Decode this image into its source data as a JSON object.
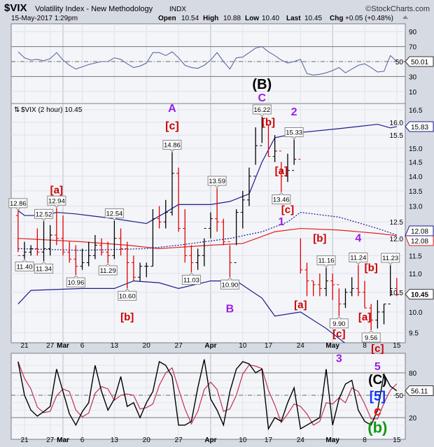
{
  "header": {
    "symbol": "$VIX",
    "name": "Volatility Index - New Methodology",
    "exchange": "INDX",
    "watermark": "©StockCharts.com",
    "datetime": "15-May-2017 1:29pm",
    "open_label": "Open",
    "open": "10.54",
    "high_label": "High",
    "high": "10.88",
    "low_label": "Low",
    "low": "10.40",
    "last_label": "Last",
    "last": "10.45",
    "chg_label": "Chg",
    "chg": "+0.05 (+0.48%)"
  },
  "colors": {
    "up_bar": "#000000",
    "down_bar": "#dd0000",
    "bands": "#1a1a8c",
    "sma": "#e02020",
    "panel_bg": "#f4f5f9",
    "purple": "#9a1ee6",
    "red_label": "#cc0000",
    "blue_label": "#1030ff",
    "green_label": "#119911"
  },
  "chart_data": [
    {
      "type": "line",
      "panel": "RSI (upper indicator)",
      "yticks": [
        10,
        30,
        50,
        70,
        90
      ],
      "ylim": [
        -5,
        100
      ],
      "reference_lines": [
        30,
        50,
        70
      ],
      "last_value": "50.01",
      "values": [
        63,
        55,
        52,
        53,
        51,
        54,
        62,
        52,
        45,
        40,
        43,
        46,
        48,
        50,
        50,
        55,
        53,
        47,
        42,
        44,
        48,
        62,
        62,
        58,
        63,
        55,
        45,
        42,
        41,
        45,
        52,
        62,
        50,
        40,
        55,
        56,
        62,
        68,
        70,
        63,
        58,
        52,
        48,
        50,
        53,
        34,
        32,
        33,
        35,
        38,
        42,
        35,
        40,
        45,
        47,
        42,
        36,
        37,
        58,
        50
      ]
    },
    {
      "type": "ohlc",
      "panel": "price",
      "title": "$VIX (2 hour) 10.45",
      "dates": [
        "Feb 17",
        "Feb 21",
        "Feb 22",
        "Feb 23",
        "Feb 24",
        "Feb 27",
        "Feb 28",
        "Mar 1",
        "Mar 2",
        "Mar 3",
        "Mar 6",
        "Mar 7",
        "Mar 8",
        "Mar 9",
        "Mar 10",
        "Mar 13",
        "Mar 14",
        "Mar 15",
        "Mar 16",
        "Mar 17",
        "Mar 20",
        "Mar 21",
        "Mar 22",
        "Mar 23",
        "Mar 24",
        "Mar 27",
        "Mar 28",
        "Mar 29",
        "Mar 30",
        "Mar 31",
        "Apr 3",
        "Apr 4",
        "Apr 5",
        "Apr 6",
        "Apr 7",
        "Apr 10",
        "Apr 11",
        "Apr 12",
        "Apr 13",
        "Apr 17",
        "Apr 18",
        "Apr 19",
        "Apr 20",
        "Apr 21",
        "Apr 24",
        "Apr 25",
        "Apr 26",
        "Apr 27",
        "Apr 28",
        "May 1",
        "May 2",
        "May 3",
        "May 4",
        "May 5",
        "May 8",
        "May 9",
        "May 10",
        "May 11",
        "May 12",
        "May 15"
      ],
      "high": [
        12.86,
        11.9,
        11.8,
        12.3,
        12.52,
        12.4,
        12.94,
        12.7,
        11.9,
        11.8,
        11.7,
        11.9,
        12.1,
        12.0,
        11.9,
        12.54,
        12.3,
        11.9,
        11.5,
        11.3,
        11.3,
        12.9,
        13.0,
        13.2,
        14.86,
        14.3,
        12.9,
        11.8,
        11.7,
        12.0,
        12.8,
        13.59,
        12.6,
        11.8,
        12.9,
        13.5,
        14.3,
        15.8,
        16.22,
        15.9,
        15.5,
        14.5,
        14.8,
        15.33,
        12.0,
        11.3,
        10.8,
        11.0,
        11.16,
        11.0,
        10.6,
        10.6,
        10.9,
        11.24,
        10.8,
        10.2,
        10.3,
        10.2,
        11.23,
        10.88
      ],
      "low": [
        11.6,
        11.4,
        11.5,
        11.5,
        11.34,
        11.5,
        11.8,
        11.5,
        11.3,
        10.96,
        11.1,
        11.2,
        11.4,
        11.5,
        11.29,
        11.4,
        11.5,
        10.6,
        10.8,
        10.8,
        10.9,
        11.2,
        12.3,
        12.3,
        12.7,
        12.2,
        11.3,
        11.03,
        11.1,
        11.2,
        12.0,
        12.2,
        11.8,
        10.9,
        11.8,
        12.3,
        13.0,
        14.4,
        15.2,
        14.7,
        14.5,
        13.46,
        13.8,
        14.4,
        11.0,
        10.4,
        10.4,
        10.4,
        10.4,
        10.3,
        9.9,
        10.1,
        10.4,
        10.4,
        10.1,
        9.56,
        9.6,
        9.7,
        10.4,
        10.4
      ],
      "close": [
        11.5,
        11.6,
        11.7,
        11.6,
        11.7,
        12.1,
        12.0,
        11.6,
        11.4,
        11.2,
        11.3,
        11.5,
        11.8,
        11.6,
        11.5,
        12.0,
        11.7,
        11.3,
        10.9,
        11.2,
        11.2,
        12.6,
        12.5,
        12.8,
        14.1,
        12.3,
        11.5,
        11.3,
        11.5,
        12.3,
        12.6,
        12.5,
        11.9,
        11.3,
        12.8,
        13.2,
        14.0,
        15.1,
        15.9,
        14.7,
        14.9,
        14.0,
        14.2,
        14.6,
        11.1,
        10.8,
        10.7,
        10.6,
        10.8,
        10.7,
        10.2,
        10.5,
        10.6,
        10.5,
        10.1,
        9.8,
        10.0,
        10.2,
        10.6,
        10.45
      ],
      "x_tick_labels": [
        {
          "i": 1,
          "t": "21"
        },
        {
          "i": 5,
          "t": "27"
        },
        {
          "i": 7,
          "t": "Mar",
          "bold": true
        },
        {
          "i": 10,
          "t": "6"
        },
        {
          "i": 15,
          "t": "13"
        },
        {
          "i": 20,
          "t": "20"
        },
        {
          "i": 25,
          "t": "27"
        },
        {
          "i": 30,
          "t": "Apr",
          "bold": true
        },
        {
          "i": 35,
          "t": "10"
        },
        {
          "i": 39,
          "t": "17"
        },
        {
          "i": 44,
          "t": "24"
        },
        {
          "i": 49,
          "t": "May",
          "bold": true
        },
        {
          "i": 54,
          "t": "8"
        },
        {
          "i": 59,
          "t": "15"
        }
      ],
      "yticks": [
        "9.5",
        "10.0",
        "10.5",
        "11.0",
        "11.5",
        "12.0",
        "12.5",
        "13.0",
        "13.5",
        "14.0",
        "14.5",
        "15.0",
        "15.5",
        "16.0",
        "16.5"
      ],
      "ylim": [
        9.0,
        16.7
      ],
      "overlays": {
        "upper_band": {
          "last": "15.83",
          "points": [
            [
              0,
              12.86
            ],
            [
              1,
              12.7
            ],
            [
              4,
              12.7
            ],
            [
              6,
              12.8
            ],
            [
              9,
              12.75
            ],
            [
              15,
              12.6
            ],
            [
              20,
              12.45
            ],
            [
              23,
              12.8
            ],
            [
              25,
              13.05
            ],
            [
              30,
              13.05
            ],
            [
              33,
              13.15
            ],
            [
              36,
              13.4
            ],
            [
              38,
              14.5
            ],
            [
              40,
              15.4
            ],
            [
              44,
              15.6
            ],
            [
              50,
              15.75
            ],
            [
              56,
              15.92
            ],
            [
              58,
              15.78
            ],
            [
              59,
              15.83
            ]
          ]
        },
        "sma": {
          "last": "12.08",
          "points": [
            [
              0,
              12.0
            ],
            [
              10,
              11.9
            ],
            [
              17,
              11.8
            ],
            [
              22,
              11.7
            ],
            [
              30,
              11.8
            ],
            [
              35,
              11.85
            ],
            [
              40,
              12.2
            ],
            [
              44,
              12.3
            ],
            [
              50,
              12.25
            ],
            [
              56,
              12.15
            ],
            [
              59,
              12.08
            ]
          ]
        },
        "ema_dotted": {
          "last": "12.08",
          "points": [
            [
              0,
              11.7
            ],
            [
              10,
              11.65
            ],
            [
              20,
              11.7
            ],
            [
              25,
              11.8
            ],
            [
              33,
              12.0
            ],
            [
              38,
              12.2
            ],
            [
              42,
              12.5
            ],
            [
              44,
              12.8
            ],
            [
              50,
              12.65
            ],
            [
              56,
              12.3
            ],
            [
              59,
              12.1
            ]
          ]
        },
        "lower_band": {
          "points": [
            [
              0,
              10.2
            ],
            [
              2,
              10.55
            ],
            [
              10,
              10.6
            ],
            [
              15,
              10.6
            ],
            [
              18,
              10.8
            ],
            [
              22,
              10.75
            ],
            [
              25,
              10.6
            ],
            [
              30,
              10.8
            ],
            [
              34,
              10.8
            ],
            [
              38,
              10.35
            ],
            [
              40,
              9.9
            ],
            [
              44,
              10.0
            ],
            [
              48,
              9.6
            ],
            [
              51,
              9.25
            ],
            [
              53,
              9.05
            ]
          ]
        }
      },
      "price_labels": [
        {
          "i": 0,
          "v": "12.86",
          "pos": "above"
        },
        {
          "i": 4,
          "v": "12.52",
          "pos": "above"
        },
        {
          "i": 6,
          "v": "12.94",
          "pos": "above"
        },
        {
          "i": 15,
          "v": "12.54",
          "pos": "above"
        },
        {
          "i": 24,
          "v": "14.86",
          "pos": "above"
        },
        {
          "i": 31,
          "v": "13.59",
          "pos": "above"
        },
        {
          "i": 38,
          "v": "16.22",
          "pos": "above"
        },
        {
          "i": 43,
          "v": "15.33",
          "pos": "above"
        },
        {
          "i": 41,
          "v": "13.46",
          "pos": "below"
        },
        {
          "i": 1,
          "v": "11.40",
          "pos": "below"
        },
        {
          "i": 4,
          "v": "11.34",
          "pos": "below"
        },
        {
          "i": 9,
          "v": "10.96",
          "pos": "below"
        },
        {
          "i": 14,
          "v": "11.29",
          "pos": "below"
        },
        {
          "i": 17,
          "v": "10.60",
          "pos": "below"
        },
        {
          "i": 27,
          "v": "11.03",
          "pos": "below"
        },
        {
          "i": 33,
          "v": "10.90",
          "pos": "below"
        },
        {
          "i": 48,
          "v": "11.16",
          "pos": "above"
        },
        {
          "i": 50,
          "v": "9.90",
          "pos": "below"
        },
        {
          "i": 53,
          "v": "11.24",
          "pos": "above"
        },
        {
          "i": 55,
          "v": "9.56",
          "pos": "below"
        },
        {
          "i": 58,
          "v": "11.23",
          "pos": "above"
        }
      ],
      "last_value": "10.45"
    },
    {
      "type": "line",
      "panel": "Stochastic (lower indicator)",
      "yticks": [
        20,
        50,
        80
      ],
      "reference_lines": [
        20,
        50,
        80
      ],
      "last_value": "56.11",
      "values": [
        95,
        50,
        30,
        22,
        28,
        35,
        85,
        55,
        25,
        10,
        28,
        40,
        90,
        55,
        30,
        45,
        75,
        35,
        40,
        20,
        40,
        55,
        95,
        90,
        75,
        10,
        10,
        15,
        60,
        98,
        45,
        30,
        10,
        55,
        85,
        95,
        92,
        80,
        85,
        5,
        20,
        15,
        40,
        60,
        5,
        10,
        15,
        20,
        85,
        10,
        45,
        65,
        70,
        30,
        15,
        10,
        30,
        78,
        62,
        56
      ]
    }
  ],
  "annotations": [
    {
      "t": "(B)",
      "c": "#000000",
      "panel": "rsi",
      "i": 38,
      "v": 20,
      "size": 20
    },
    {
      "t": "C",
      "c": "#9a1ee6",
      "panel": "rsi",
      "i": 38,
      "v": 2,
      "size": 16
    },
    {
      "t": "A",
      "c": "#9a1ee6",
      "panel": "price",
      "i": 24,
      "v": 16.35,
      "size": 16
    },
    {
      "t": "[c]",
      "c": "#cc0000",
      "panel": "price",
      "i": 24,
      "v": 15.65,
      "size": 16
    },
    {
      "t": "[a]",
      "c": "#cc0000",
      "panel": "price",
      "i": 6,
      "v": 13.35,
      "size": 15
    },
    {
      "t": "[b]",
      "c": "#cc0000",
      "panel": "price",
      "i": 17,
      "v": 9.75,
      "size": 15
    },
    {
      "t": "B",
      "c": "#9a1ee6",
      "panel": "price",
      "i": 33,
      "v": 9.95,
      "size": 16
    },
    {
      "t": "[b]",
      "c": "#cc0000",
      "panel": "price",
      "i": 39,
      "v": 15.8,
      "size": 15
    },
    {
      "t": "2",
      "c": "#9a1ee6",
      "panel": "price",
      "i": 43,
      "v": 16.2,
      "size": 16
    },
    {
      "t": "[a]",
      "c": "#cc0000",
      "panel": "price",
      "i": 41,
      "v": 14.0,
      "size": 15
    },
    {
      "t": "[c]",
      "c": "#cc0000",
      "panel": "price",
      "i": 42,
      "v": 12.85,
      "size": 15
    },
    {
      "t": "1",
      "c": "#9a1ee6",
      "panel": "price",
      "i": 41,
      "v": 12.35,
      "size": 16
    },
    {
      "t": "[b]",
      "c": "#cc0000",
      "panel": "price",
      "i": 47,
      "v": 11.85,
      "size": 15
    },
    {
      "t": "4",
      "c": "#9a1ee6",
      "panel": "price",
      "i": 53,
      "v": 11.85,
      "size": 16
    },
    {
      "t": "[b]",
      "c": "#cc0000",
      "panel": "price",
      "i": 55,
      "v": 11.15,
      "size": 15
    },
    {
      "t": "[a]",
      "c": "#cc0000",
      "panel": "price",
      "i": 44,
      "v": 10.05,
      "size": 15
    },
    {
      "t": "[c]",
      "c": "#cc0000",
      "panel": "price",
      "i": 50,
      "v": 9.45,
      "size": 15
    },
    {
      "t": "[a]",
      "c": "#cc0000",
      "panel": "price",
      "i": 54,
      "v": 9.75,
      "size": 15
    },
    {
      "t": "[c]",
      "c": "#cc0000",
      "panel": "price",
      "i": 56,
      "v": 8.8,
      "size": 15
    },
    {
      "t": "3",
      "c": "#9a1ee6",
      "panel": "stoch",
      "i": 50,
      "v": 100,
      "size": 16
    },
    {
      "t": "5",
      "c": "#9a1ee6",
      "panel": "stoch",
      "i": 56,
      "v": 89,
      "size": 16
    },
    {
      "t": "(C)",
      "c": "#000000",
      "panel": "stoch",
      "i": 56,
      "v": 71,
      "size": 19
    },
    {
      "t": "[5]",
      "c": "#1030ff",
      "panel": "stoch",
      "i": 56,
      "v": 49,
      "size": 19
    },
    {
      "t": "c",
      "c": "#ee1111",
      "panel": "stoch",
      "i": 56,
      "v": 33,
      "size": 19
    },
    {
      "t": "(b)",
      "c": "#119911",
      "panel": "stoch",
      "i": 56,
      "v": 7,
      "size": 22
    }
  ]
}
